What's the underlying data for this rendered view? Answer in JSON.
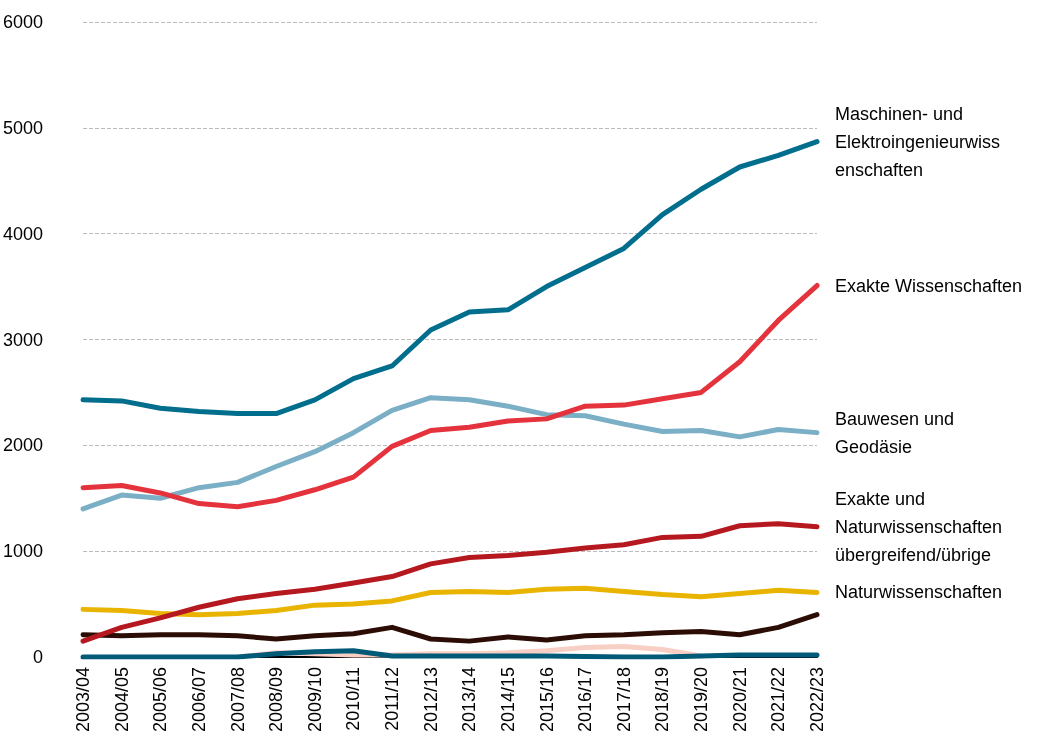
{
  "chart_data": {
    "type": "line",
    "categories": [
      "2003/04",
      "2004/05",
      "2005/06",
      "2006/07",
      "2007/08",
      "2008/09",
      "2009/10",
      "2010/11",
      "2011/12",
      "2012/13",
      "2013/14",
      "2014/15",
      "2015/16",
      "2016/17",
      "2017/18",
      "2018/19",
      "2019/20",
      "2020/21",
      "2021/22",
      "2022/23"
    ],
    "series": [
      {
        "color": "#f8cfc4",
        "values": [
          null,
          null,
          null,
          null,
          0,
          40,
          30,
          20,
          20,
          30,
          30,
          40,
          60,
          90,
          100,
          70,
          10,
          null,
          null,
          null
        ]
      },
      {
        "color": "#005a78",
        "values": [
          0,
          0,
          0,
          0,
          0,
          30,
          50,
          60,
          10,
          10,
          10,
          10,
          10,
          5,
          0,
          0,
          10,
          20,
          20,
          20
        ]
      },
      {
        "color": "#2b0d05",
        "values": [
          210,
          200,
          210,
          210,
          200,
          170,
          200,
          220,
          280,
          170,
          150,
          190,
          160,
          200,
          210,
          230,
          240,
          210,
          280,
          400
        ]
      },
      {
        "name": "Naturwissenschaften",
        "color": "#e8b400",
        "values": [
          450,
          440,
          410,
          400,
          410,
          440,
          490,
          500,
          530,
          610,
          620,
          610,
          640,
          650,
          620,
          590,
          570,
          600,
          630,
          610
        ]
      },
      {
        "name": "Exakte und Naturwissenschaften übergreifend/übrige",
        "color": "#b5191f",
        "values": [
          150,
          280,
          370,
          470,
          550,
          600,
          640,
          700,
          760,
          880,
          940,
          960,
          990,
          1030,
          1060,
          1130,
          1140,
          1240,
          1260,
          1230
        ]
      },
      {
        "name": "Bauwesen und Geodäsie",
        "color": "#7aafc6",
        "values": [
          1400,
          1530,
          1500,
          1600,
          1650,
          1800,
          1940,
          2120,
          2330,
          2450,
          2430,
          2370,
          2290,
          2280,
          2200,
          2130,
          2140,
          2080,
          2150,
          2120
        ]
      },
      {
        "name": "Exakte Wissenschaften",
        "color": "#e4333c",
        "values": [
          1600,
          1620,
          1550,
          1450,
          1420,
          1480,
          1580,
          1700,
          1990,
          2140,
          2170,
          2230,
          2250,
          2370,
          2380,
          2440,
          2500,
          2790,
          3180,
          3510
        ]
      },
      {
        "name": "Maschinen- und Elektroingenieurwiss enschaften",
        "color": "#006e8c",
        "values": [
          2430,
          2420,
          2350,
          2320,
          2300,
          2300,
          2430,
          2630,
          2750,
          3090,
          3260,
          3280,
          3500,
          3680,
          3860,
          4180,
          4420,
          4630,
          4740,
          4870
        ]
      }
    ],
    "ylim": [
      0,
      6000
    ],
    "yticks": [
      0,
      1000,
      2000,
      3000,
      4000,
      5000,
      6000
    ],
    "grid": "y",
    "legend": false,
    "marker": "none",
    "line_style": "solid"
  }
}
